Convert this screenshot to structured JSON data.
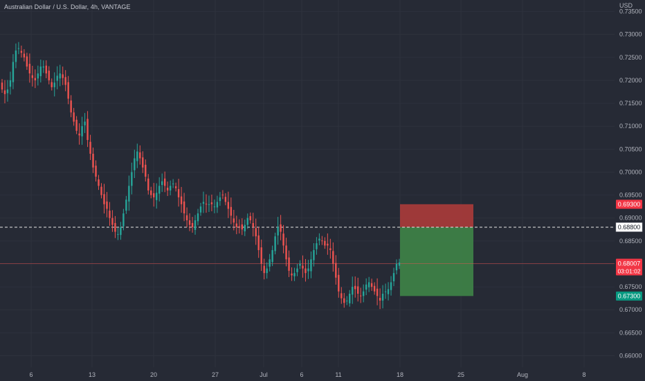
{
  "title": "Australian Dollar / U.S. Dollar, 4h, VANTAGE",
  "currency_label": "USD",
  "chart_data": {
    "type": "candlestick",
    "ylim": [
      0.6575,
      0.7375
    ],
    "y_ticks": [
      0.735,
      0.73,
      0.725,
      0.72,
      0.715,
      0.71,
      0.705,
      0.7,
      0.695,
      0.69,
      0.685,
      0.68,
      0.675,
      0.67,
      0.665,
      0.66
    ],
    "x_ticks": [
      "6",
      "13",
      "20",
      "27",
      "Jul",
      "6",
      "11",
      "18",
      "25",
      "Aug",
      "8"
    ],
    "close_series": [
      0.718,
      0.717,
      0.718,
      0.72,
      0.724,
      0.7265,
      0.727,
      0.726,
      0.725,
      0.723,
      0.7215,
      0.7205,
      0.72,
      0.7215,
      0.723,
      0.723,
      0.7215,
      0.72,
      0.7185,
      0.7195,
      0.721,
      0.7215,
      0.7205,
      0.719,
      0.716,
      0.713,
      0.711,
      0.709,
      0.708,
      0.71,
      0.711,
      0.707,
      0.704,
      0.701,
      0.699,
      0.697,
      0.695,
      0.693,
      0.692,
      0.69,
      0.6885,
      0.687,
      0.6865,
      0.688,
      0.691,
      0.694,
      0.697,
      0.7,
      0.703,
      0.7045,
      0.703,
      0.701,
      0.699,
      0.696,
      0.695,
      0.6945,
      0.6955,
      0.697,
      0.698,
      0.697,
      0.696,
      0.697,
      0.6975,
      0.6965,
      0.6945,
      0.693,
      0.691,
      0.6895,
      0.6885,
      0.688,
      0.6895,
      0.691,
      0.6925,
      0.6935,
      0.693,
      0.693,
      0.693,
      0.6925,
      0.6935,
      0.6945,
      0.695,
      0.6935,
      0.692,
      0.6905,
      0.689,
      0.688,
      0.688,
      0.6875,
      0.6885,
      0.69,
      0.6895,
      0.688,
      0.686,
      0.683,
      0.68,
      0.678,
      0.679,
      0.681,
      0.683,
      0.686,
      0.688,
      0.687,
      0.684,
      0.681,
      0.6785,
      0.6775,
      0.678,
      0.679,
      0.68,
      0.679,
      0.678,
      0.679,
      0.681,
      0.683,
      0.6845,
      0.6855,
      0.685,
      0.684,
      0.684,
      0.683,
      0.68,
      0.677,
      0.674,
      0.6725,
      0.6715,
      0.672,
      0.6735,
      0.675,
      0.6745,
      0.6735,
      0.673,
      0.674,
      0.6755,
      0.676,
      0.675,
      0.674,
      0.673,
      0.672,
      0.6735,
      0.674,
      0.6745,
      0.676,
      0.678,
      0.68,
      0.6803
    ],
    "hline": 0.688,
    "current_price": 0.68007,
    "countdown": "03:01:02",
    "position": {
      "stop": 0.693,
      "entry": 0.688,
      "target": 0.673
    },
    "price_labels": {
      "stop": "0.69300",
      "entry": "0.68800",
      "current": "0.68007",
      "target": "0.67300"
    },
    "colors": {
      "background": "#262a35",
      "up": "#26a69a",
      "down": "#ef5350",
      "stop_zone": "#a43a3a",
      "target_zone": "#3d7f47",
      "stop_label": "#f23645",
      "target_label": "#089981",
      "grid": "#2e323d",
      "axis_text": "#b2b5be"
    }
  }
}
